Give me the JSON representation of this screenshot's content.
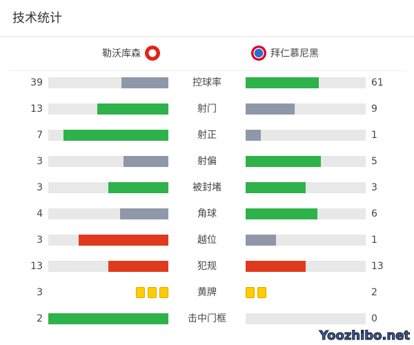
{
  "title": "技术统计",
  "home": {
    "name": "勒沃库森",
    "logo": "bayer-leverkusen-logo"
  },
  "away": {
    "name": "拜仁慕尼黑",
    "logo": "bayern-munich-logo"
  },
  "colors": {
    "green": "#2eb24a",
    "gray": "#8e98a8",
    "red": "#e0391e",
    "track": "#e8e8e8",
    "yellow": "#ffcc00"
  },
  "stats": [
    {
      "label": "控球率",
      "home": "39",
      "away": "61",
      "home_frac": 0.39,
      "away_frac": 0.61,
      "home_color": "#8e98a8",
      "away_color": "#2eb24a"
    },
    {
      "label": "射门",
      "home": "13",
      "away": "9",
      "home_frac": 0.59,
      "away_frac": 0.41,
      "home_color": "#2eb24a",
      "away_color": "#8e98a8"
    },
    {
      "label": "射正",
      "home": "7",
      "away": "1",
      "home_frac": 0.875,
      "away_frac": 0.125,
      "home_color": "#2eb24a",
      "away_color": "#8e98a8"
    },
    {
      "label": "射偏",
      "home": "3",
      "away": "5",
      "home_frac": 0.375,
      "away_frac": 0.625,
      "home_color": "#8e98a8",
      "away_color": "#2eb24a"
    },
    {
      "label": "被封堵",
      "home": "3",
      "away": "3",
      "home_frac": 0.5,
      "away_frac": 0.5,
      "home_color": "#2eb24a",
      "away_color": "#2eb24a"
    },
    {
      "label": "角球",
      "home": "4",
      "away": "6",
      "home_frac": 0.4,
      "away_frac": 0.6,
      "home_color": "#8e98a8",
      "away_color": "#2eb24a"
    },
    {
      "label": "越位",
      "home": "3",
      "away": "1",
      "home_frac": 0.75,
      "away_frac": 0.25,
      "home_color": "#e0391e",
      "away_color": "#8e98a8"
    },
    {
      "label": "犯规",
      "home": "13",
      "away": "13",
      "home_frac": 0.5,
      "away_frac": 0.5,
      "home_color": "#e0391e",
      "away_color": "#e0391e"
    },
    {
      "label": "黄牌",
      "home": "3",
      "away": "2",
      "cards": true
    },
    {
      "label": "击中门框",
      "home": "2",
      "away": "0",
      "home_frac": 1,
      "away_frac": 0,
      "home_color": "#2eb24a",
      "away_color": "#8e98a8"
    }
  ],
  "watermark": "Yoozhibo.net"
}
